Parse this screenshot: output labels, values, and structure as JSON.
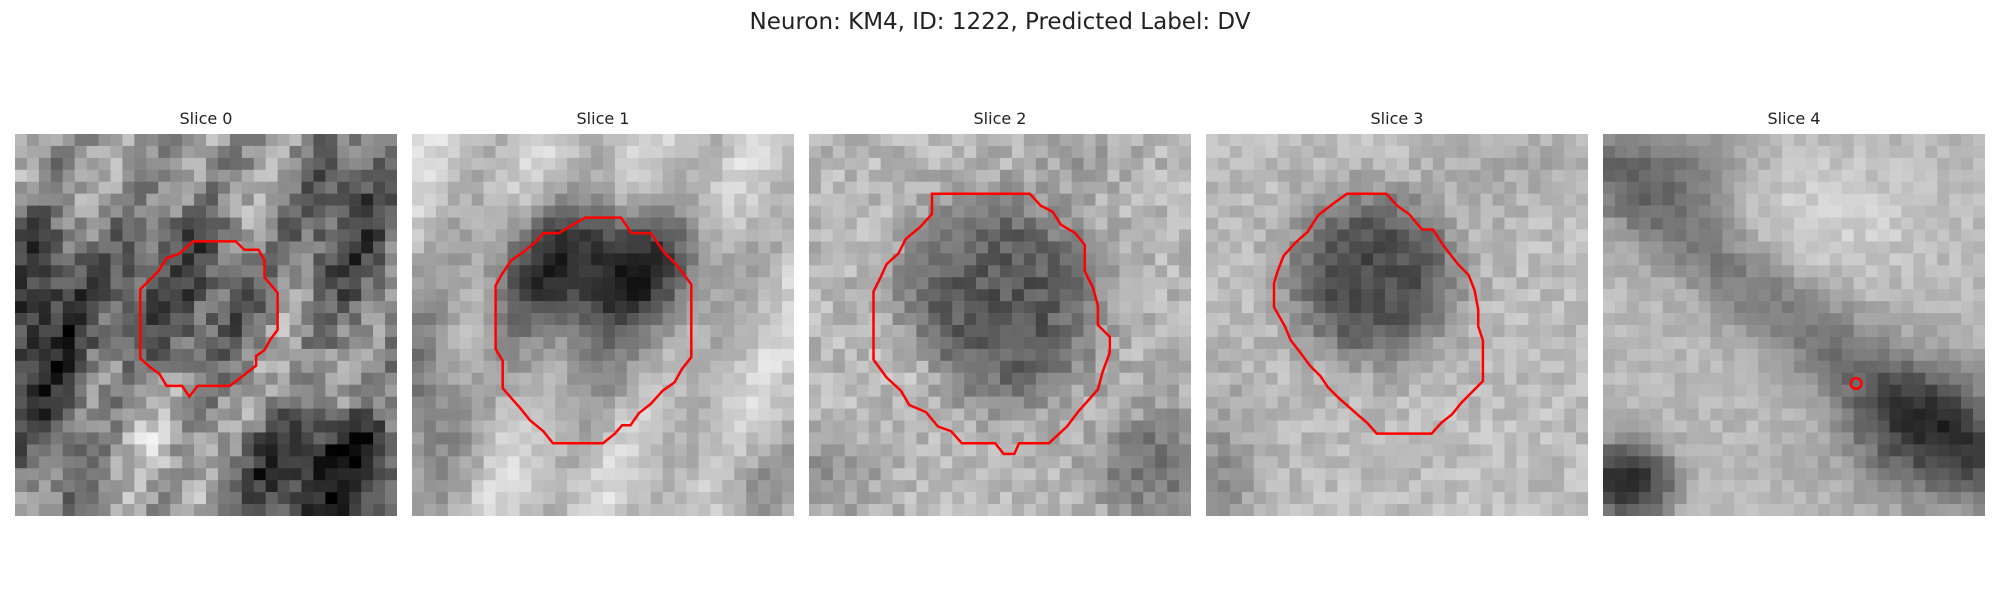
{
  "figure": {
    "title": "Neuron: KM4, ID: 1222, Predicted Label: DV"
  },
  "panels": [
    {
      "title": "Slice 0"
    },
    {
      "title": "Slice 1"
    },
    {
      "title": "Slice 2"
    },
    {
      "title": "Slice 3"
    },
    {
      "title": "Slice 4"
    }
  ],
  "colors": {
    "contour": "#ff0000",
    "background": "#ffffff"
  },
  "image": {
    "colormap": "gray",
    "grid": "32x32"
  }
}
